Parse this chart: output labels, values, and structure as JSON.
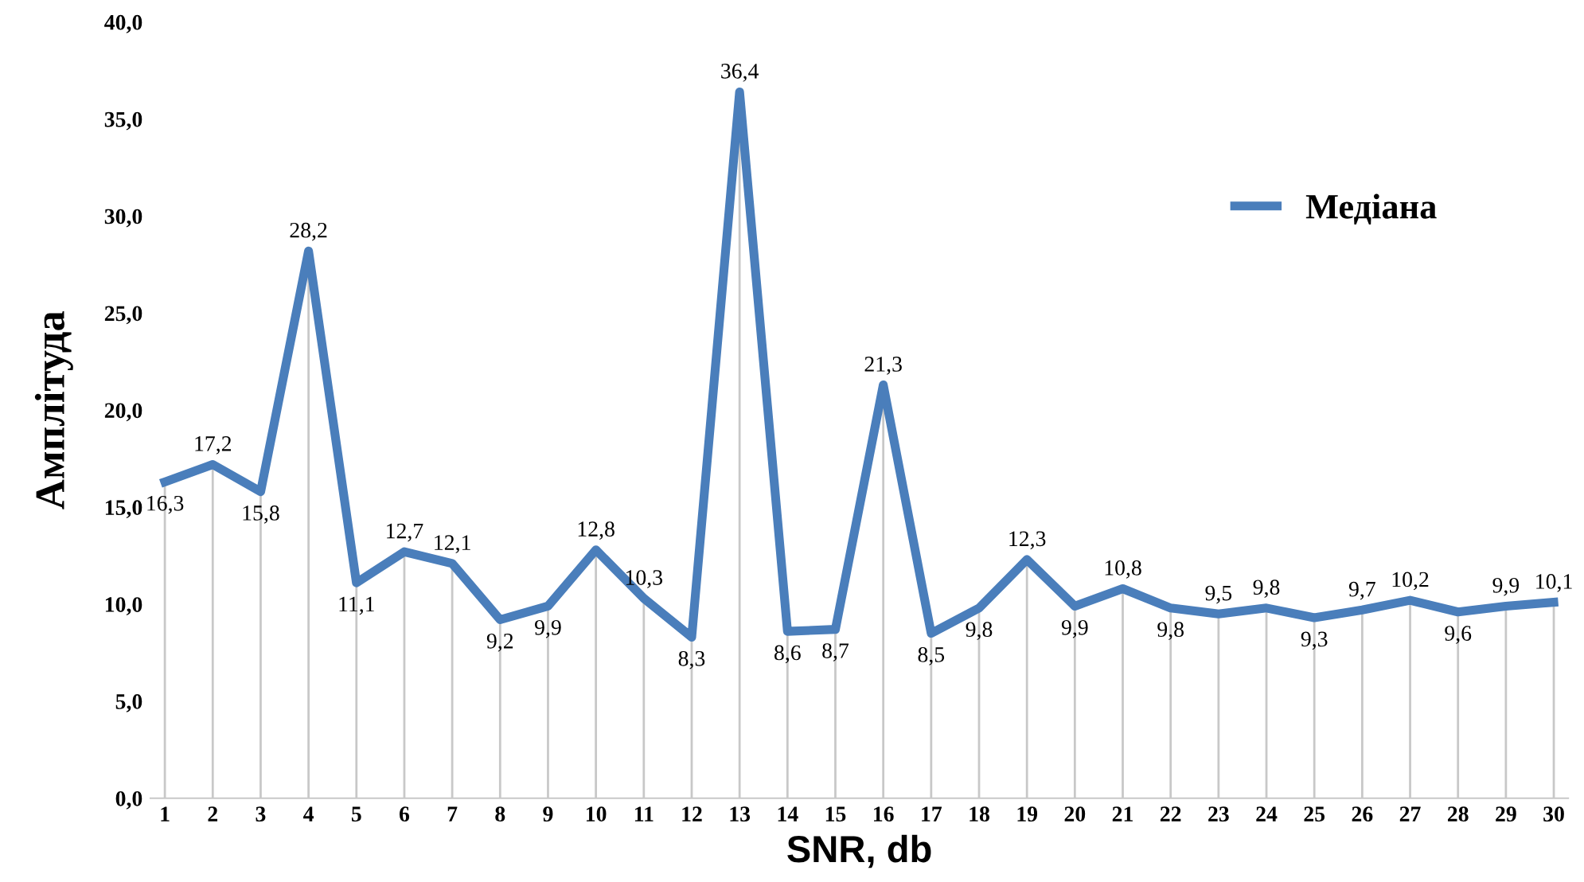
{
  "chart_data": {
    "type": "line",
    "xlabel": "SNR, db",
    "ylabel": "Амплітуда",
    "categories": [
      "1",
      "2",
      "3",
      "4",
      "5",
      "6",
      "7",
      "8",
      "9",
      "10",
      "11",
      "12",
      "13",
      "14",
      "15",
      "16",
      "17",
      "18",
      "19",
      "20",
      "21",
      "22",
      "23",
      "24",
      "25",
      "26",
      "27",
      "28",
      "29",
      "30"
    ],
    "series": [
      {
        "name": "Медіана",
        "color": "#4a7ebb",
        "values": [
          16.3,
          17.2,
          15.8,
          28.2,
          11.1,
          12.7,
          12.1,
          9.2,
          9.9,
          12.8,
          10.3,
          8.3,
          36.4,
          8.6,
          8.7,
          21.3,
          8.5,
          9.8,
          12.3,
          9.9,
          10.8,
          9.8,
          9.5,
          9.8,
          9.3,
          9.7,
          10.2,
          9.6,
          9.9,
          10.1
        ],
        "value_labels": [
          "16,3",
          "17,2",
          "15,8",
          "28,2",
          "11,1",
          "12,7",
          "12,1",
          "9,2",
          "9,9",
          "12,8",
          "10,3",
          "8,3",
          "36,4",
          "8,6",
          "8,7",
          "21,3",
          "8,5",
          "9,8",
          "12,3",
          "9,9",
          "10,8",
          "9,8",
          "9,5",
          "9,8",
          "9,3",
          "9,7",
          "10,2",
          "9,6",
          "9,9",
          "10,1"
        ]
      }
    ],
    "ylim": [
      0,
      40
    ],
    "yticks": [
      {
        "value": 0,
        "label": "0,0"
      },
      {
        "value": 5,
        "label": "5,0"
      },
      {
        "value": 10,
        "label": "10,0"
      },
      {
        "value": 15,
        "label": "15,0"
      },
      {
        "value": 20,
        "label": "20,0"
      },
      {
        "value": 25,
        "label": "25,0"
      },
      {
        "value": 30,
        "label": "30,0"
      },
      {
        "value": 35,
        "label": "35,0"
      },
      {
        "value": 40,
        "label": "40,0"
      }
    ],
    "legend": "top right",
    "marker": "none",
    "line_style": "solid",
    "grid": "x"
  }
}
